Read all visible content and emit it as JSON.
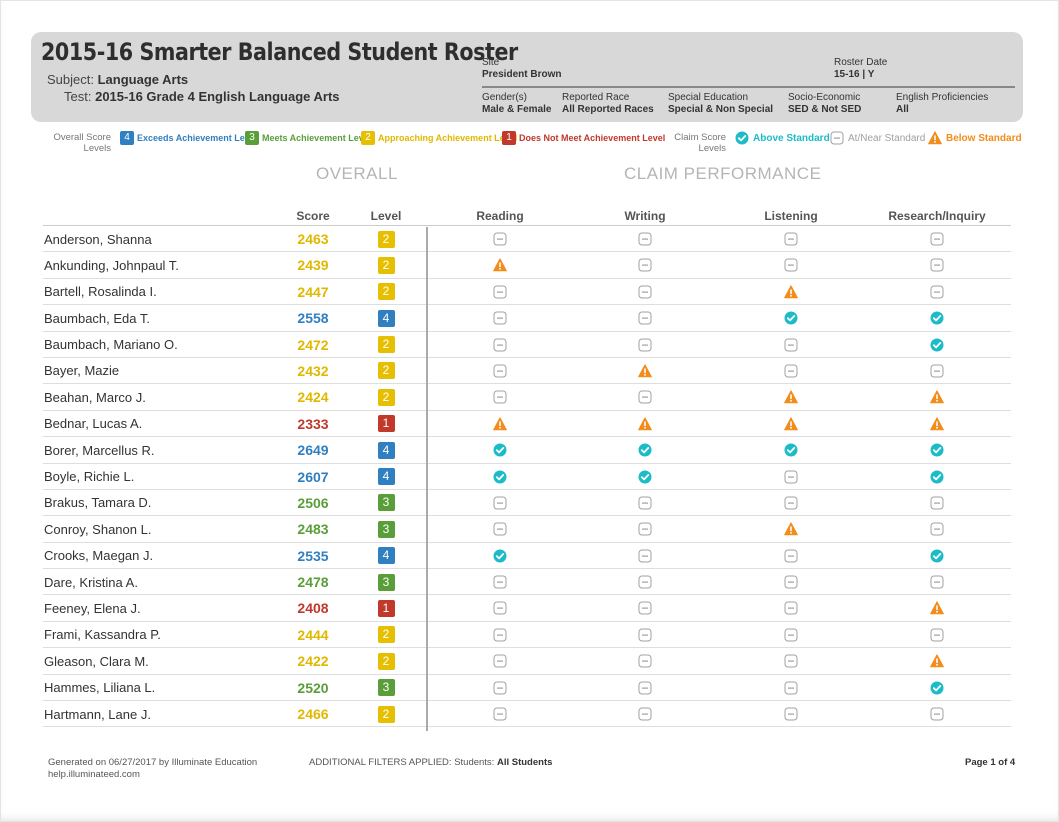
{
  "header": {
    "title": "2015-16 Smarter Balanced Student Roster",
    "subject_label": "Subject:",
    "subject_value": "Language Arts",
    "test_label": "Test:",
    "test_value": "2015-16 Grade 4 English Language Arts",
    "site_label": "Site",
    "site_value": "President Brown",
    "roster_date_label": "Roster Date",
    "roster_date_value": "15-16 | Y",
    "gender_label": "Gender(s)",
    "gender_value": "Male & Female",
    "race_label": "Reported Race",
    "race_value": "All Reported Races",
    "sped_label": "Special Education",
    "sped_value": "Special & Non Special",
    "ses_label": "Socio-Economic",
    "ses_value": "SED & Not SED",
    "ep_label": "English Proficiencies",
    "ep_value": "All"
  },
  "legend": {
    "overall_label_1": "Overall Score",
    "overall_label_2": "Levels",
    "l4": "Exceeds Achievement Level",
    "l3": "Meets Achievement Level",
    "l2": "Approaching Achievement Level",
    "l1": "Does Not Meet Achievement Level",
    "claim_label_1": "Claim Score",
    "claim_label_2": "Levels",
    "above": "Above Standard",
    "near": "At/Near Standard",
    "below": "Below Standard"
  },
  "sections": {
    "overall": "OVERALL",
    "claim": "CLAIM PERFORMANCE"
  },
  "columns": {
    "score": "Score",
    "level": "Level",
    "reading": "Reading",
    "writing": "Writing",
    "listening": "Listening",
    "research": "Research/Inquiry"
  },
  "colors": {
    "level_1": "#c0392b",
    "level_2": "#e6c000",
    "level_3": "#5a9e3a",
    "level_4": "#2f7fc1",
    "above": "#1bbcc8",
    "near": "#a0a0a0",
    "below": "#f28c1a"
  },
  "students": [
    {
      "name": "Anderson, Shanna",
      "score": "2463",
      "level": 2,
      "claims": [
        "near",
        "near",
        "near",
        "near"
      ]
    },
    {
      "name": "Ankunding, Johnpaul T.",
      "score": "2439",
      "level": 2,
      "claims": [
        "below",
        "near",
        "near",
        "near"
      ]
    },
    {
      "name": "Bartell, Rosalinda I.",
      "score": "2447",
      "level": 2,
      "claims": [
        "near",
        "near",
        "below",
        "near"
      ]
    },
    {
      "name": "Baumbach, Eda T.",
      "score": "2558",
      "level": 4,
      "claims": [
        "near",
        "near",
        "above",
        "above"
      ]
    },
    {
      "name": "Baumbach, Mariano O.",
      "score": "2472",
      "level": 2,
      "claims": [
        "near",
        "near",
        "near",
        "above"
      ]
    },
    {
      "name": "Bayer, Mazie",
      "score": "2432",
      "level": 2,
      "claims": [
        "near",
        "below",
        "near",
        "near"
      ]
    },
    {
      "name": "Beahan, Marco J.",
      "score": "2424",
      "level": 2,
      "claims": [
        "near",
        "near",
        "below",
        "below"
      ]
    },
    {
      "name": "Bednar, Lucas A.",
      "score": "2333",
      "level": 1,
      "claims": [
        "below",
        "below",
        "below",
        "below"
      ]
    },
    {
      "name": "Borer, Marcellus R.",
      "score": "2649",
      "level": 4,
      "claims": [
        "above",
        "above",
        "above",
        "above"
      ]
    },
    {
      "name": "Boyle, Richie L.",
      "score": "2607",
      "level": 4,
      "claims": [
        "above",
        "above",
        "near",
        "above"
      ]
    },
    {
      "name": "Brakus, Tamara D.",
      "score": "2506",
      "level": 3,
      "claims": [
        "near",
        "near",
        "near",
        "near"
      ]
    },
    {
      "name": "Conroy, Shanon L.",
      "score": "2483",
      "level": 3,
      "claims": [
        "near",
        "near",
        "below",
        "near"
      ]
    },
    {
      "name": "Crooks, Maegan J.",
      "score": "2535",
      "level": 4,
      "claims": [
        "above",
        "near",
        "near",
        "above"
      ]
    },
    {
      "name": "Dare, Kristina A.",
      "score": "2478",
      "level": 3,
      "claims": [
        "near",
        "near",
        "near",
        "near"
      ]
    },
    {
      "name": "Feeney, Elena J.",
      "score": "2408",
      "level": 1,
      "claims": [
        "near",
        "near",
        "near",
        "below"
      ]
    },
    {
      "name": "Frami, Kassandra P.",
      "score": "2444",
      "level": 2,
      "claims": [
        "near",
        "near",
        "near",
        "near"
      ]
    },
    {
      "name": "Gleason, Clara M.",
      "score": "2422",
      "level": 2,
      "claims": [
        "near",
        "near",
        "near",
        "below"
      ]
    },
    {
      "name": "Hammes, Liliana L.",
      "score": "2520",
      "level": 3,
      "claims": [
        "near",
        "near",
        "near",
        "above"
      ]
    },
    {
      "name": "Hartmann, Lane J.",
      "score": "2466",
      "level": 2,
      "claims": [
        "near",
        "near",
        "near",
        "near"
      ]
    }
  ],
  "footer": {
    "generated": "Generated on 06/27/2017 by Illuminate Education",
    "help": "help.illuminateed.com",
    "filters_label": "ADDITIONAL FILTERS APPLIED:",
    "filters_key": "Students:",
    "filters_value": "All Students",
    "page": "Page 1 of 4"
  }
}
